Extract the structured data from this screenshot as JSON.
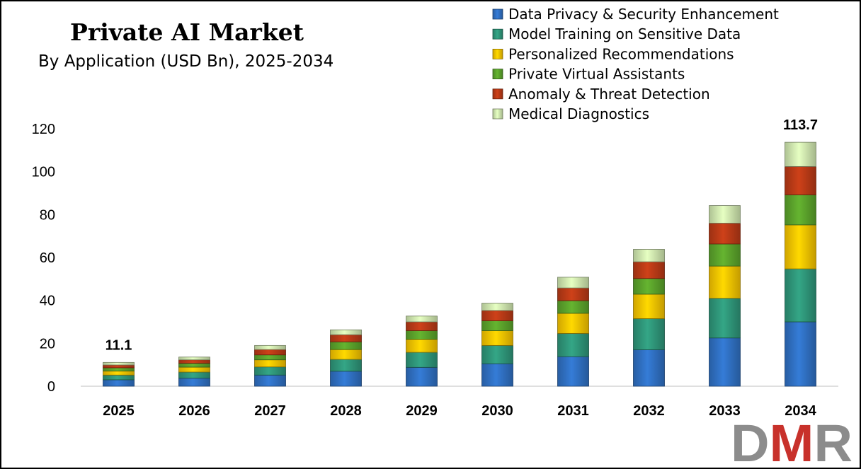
{
  "chart_data": {
    "type": "bar",
    "stacked": true,
    "title": "Private AI Market",
    "subtitle": "By Application (USD Bn), 2025-2034",
    "categories": [
      "2025",
      "2026",
      "2027",
      "2028",
      "2029",
      "2030",
      "2031",
      "2032",
      "2033",
      "2034"
    ],
    "series": [
      {
        "name": "Data Privacy & Security Enhancement",
        "color": "#2f6fc0",
        "values": [
          3.0,
          3.8,
          5.2,
          7.0,
          8.8,
          10.5,
          13.8,
          17.0,
          22.5,
          30.0
        ]
      },
      {
        "name": "Model Training on Sensitive Data",
        "color": "#2e9478",
        "values": [
          2.2,
          2.8,
          3.8,
          5.5,
          7.0,
          8.5,
          10.8,
          14.5,
          18.5,
          24.7
        ]
      },
      {
        "name": "Personalized Recommendations",
        "color": "#f5c200",
        "values": [
          1.9,
          2.3,
          3.3,
          4.6,
          6.1,
          6.9,
          9.4,
          11.4,
          15.0,
          20.5
        ]
      },
      {
        "name": "Private Virtual Assistants",
        "color": "#5aa12b",
        "values": [
          1.5,
          1.8,
          2.3,
          3.6,
          4.0,
          4.6,
          5.9,
          7.3,
          10.3,
          14.0
        ]
      },
      {
        "name": "Anomaly & Threat Detection",
        "color": "#b83a16",
        "values": [
          1.3,
          1.6,
          2.5,
          3.3,
          4.1,
          4.8,
          5.9,
          7.8,
          9.7,
          13.2
        ]
      },
      {
        "name": "Medical Diagnostics",
        "color": "#cde4ad",
        "values": [
          1.2,
          1.3,
          1.9,
          2.3,
          2.7,
          3.4,
          5.0,
          5.8,
          8.2,
          11.3
        ]
      }
    ],
    "totals_labels": [
      {
        "category": "2025",
        "text": "11.1"
      },
      {
        "category": "2034",
        "text": "113.7"
      }
    ],
    "ylim": [
      0,
      120
    ],
    "yticks": [
      0,
      20,
      40,
      60,
      80,
      100,
      120
    ],
    "xlabel": "",
    "ylabel": "",
    "grid": false,
    "legend_position": "top-right"
  },
  "logo": {
    "text": "DMR",
    "colors": {
      "D": "#8c8c8c",
      "M": "#c8312b",
      "R": "#8c8c8c"
    }
  }
}
